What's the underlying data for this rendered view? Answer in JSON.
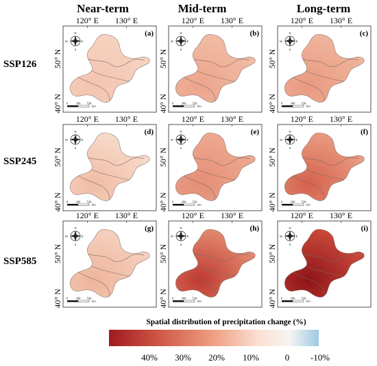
{
  "columns": [
    "Near-term",
    "Mid-term",
    "Long-term"
  ],
  "rows": [
    "SSP126",
    "SSP245",
    "SSP585"
  ],
  "lon_ticks": [
    "120° E",
    "130° E"
  ],
  "lat_ticks": [
    "50° N",
    "40° N"
  ],
  "compass": {
    "n": "N",
    "s": "S",
    "w": "W",
    "e": "E"
  },
  "scalebar": {
    "labels": [
      "0",
      "260",
      "520"
    ],
    "unit": "km"
  },
  "panel_letters": [
    "(a)",
    "(b)",
    "(c)",
    "(d)",
    "(e)",
    "(f)",
    "(g)",
    "(h)",
    "(i)"
  ],
  "panel_colors": [
    [
      "#f6d4c1",
      "#f3c4b0"
    ],
    [
      "#f2bda6",
      "#eca48c"
    ],
    [
      "#f0b69e",
      "#e99a80"
    ],
    [
      "#f7dccb",
      "#f1bca5"
    ],
    [
      "#eeab92",
      "#e48e75"
    ],
    [
      "#ea9f85",
      "#d5614c"
    ],
    [
      "#f5d2bf",
      "#efb49c"
    ],
    [
      "#e48d73",
      "#bf3a30"
    ],
    [
      "#cd4c3c",
      "#8e1418"
    ]
  ],
  "legend": {
    "title": "Spatial distribution of precipitation change (%)",
    "labels": [
      "40%",
      "30%",
      "20%",
      "10%",
      "0",
      "-10%"
    ],
    "colors": [
      "#a01b1f",
      "#d05a48",
      "#ef9f84",
      "#fbe2d4",
      "#f7f4f2",
      "#9ccae2"
    ]
  }
}
